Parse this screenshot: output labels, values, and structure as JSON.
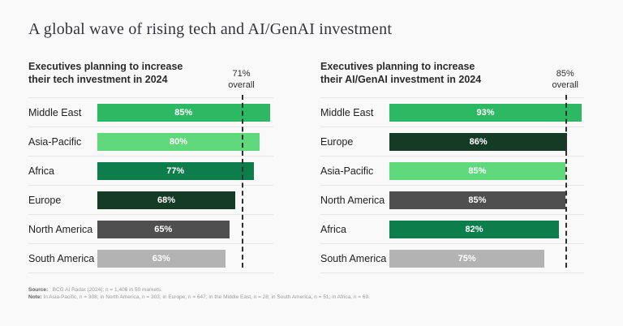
{
  "page": {
    "title": "A global wave of rising tech and AI/GenAI investment",
    "background_color": "#f9f9fa"
  },
  "colors": {
    "medium_green": "#2db963",
    "light_green": "#5fd97c",
    "dark_green": "#0c7d4b",
    "darkest_green": "#133b26",
    "dark_gray": "#4f4f4f",
    "light_gray": "#b3b3b3",
    "dashed_line": "#2f2f2f",
    "divider": "#e6e6e7",
    "bar_label_text": "#ffffff"
  },
  "chart_data": [
    {
      "type": "bar",
      "orientation": "horizontal",
      "title": "Executives planning to increase their tech investment in 2024",
      "title_lines": [
        "Executives planning to increase",
        "their tech investment in 2024"
      ],
      "overall": {
        "value": 71,
        "label_lines": [
          "71%",
          "overall"
        ]
      },
      "xlim": [
        0,
        100
      ],
      "grid": false,
      "legend": "none",
      "categories": [
        "Middle East",
        "Asia-Pacific",
        "Africa",
        "Europe",
        "North America",
        "South America"
      ],
      "values": [
        85,
        80,
        77,
        68,
        65,
        63
      ],
      "value_labels": [
        "85%",
        "80%",
        "77%",
        "68%",
        "65%",
        "63%"
      ],
      "bar_colors": [
        "#2db963",
        "#5fd97c",
        "#0c7d4b",
        "#133b26",
        "#4f4f4f",
        "#b3b3b3"
      ]
    },
    {
      "type": "bar",
      "orientation": "horizontal",
      "title": "Executives planning to increase their AI/GenAI investment in 2024",
      "title_lines": [
        "Executives planning to increase",
        "their AI/GenAI investment in 2024"
      ],
      "overall": {
        "value": 85,
        "label_lines": [
          "85%",
          "overall"
        ]
      },
      "xlim": [
        0,
        100
      ],
      "grid": false,
      "legend": "none",
      "categories": [
        "Middle East",
        "Europe",
        "Asia-Pacific",
        "North America",
        "Africa",
        "South America"
      ],
      "values": [
        93,
        86,
        85,
        85,
        82,
        75
      ],
      "value_labels": [
        "93%",
        "86%",
        "85%",
        "85%",
        "82%",
        "75%"
      ],
      "bar_colors": [
        "#2db963",
        "#133b26",
        "#5fd97c",
        "#4f4f4f",
        "#0c7d4b",
        "#b3b3b3"
      ]
    }
  ],
  "footer": {
    "source_label": "Source:",
    "source_text": " : BCG AI Radar (2024); n = 1,406 in 50 markets.",
    "note_label": "Note:",
    "note_text": " In Asia-Pacific, n = 308; in North America, n = 303; in Europe, n = 647; in the Middle East, n = 28; in South America, n = 51; in Africa, n = 69."
  }
}
